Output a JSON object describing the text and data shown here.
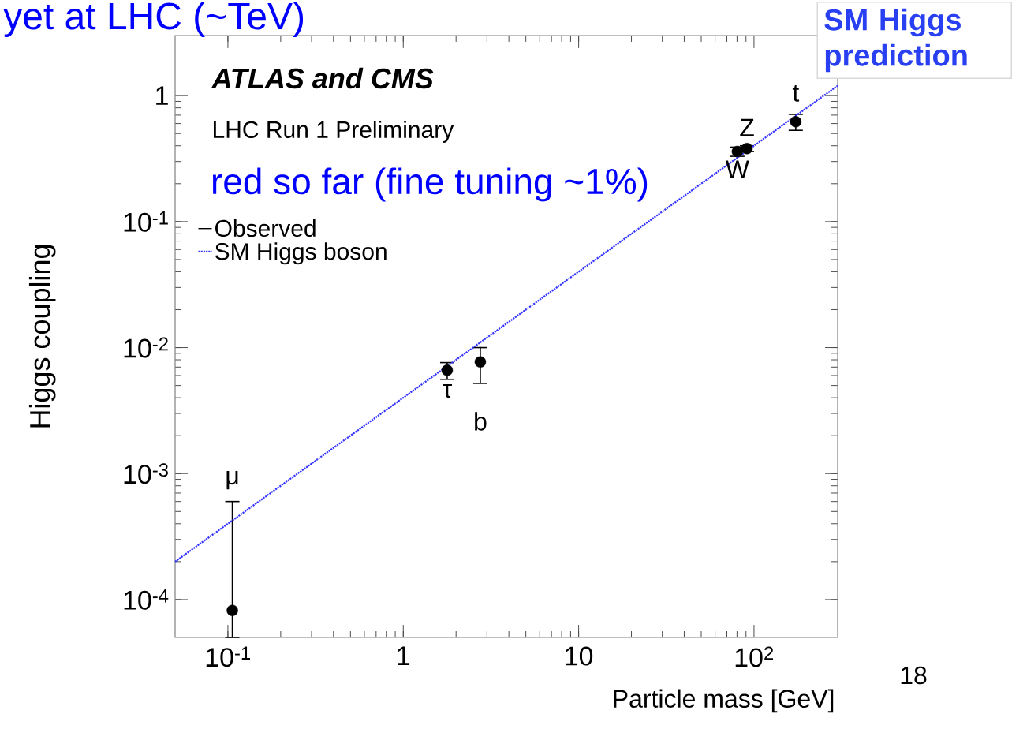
{
  "chart_data": {
    "type": "scatter",
    "xlabel": "Particle mass [GeV]",
    "ylabel": "Higgs coupling",
    "log": "xy",
    "legend": "left",
    "xlim": [
      0.05,
      300
    ],
    "ylim": [
      5e-05,
      3
    ],
    "xticks": [
      {
        "value": 0.1,
        "label": "10$^{-1}$"
      },
      1,
      10,
      {
        "value": 100,
        "label": "10$^{2}$"
      }
    ],
    "yticks": [
      {
        "value": 0.0001,
        "label": "10$^{-4}$"
      },
      {
        "value": 0.001,
        "label": "10$^{-3}$"
      },
      {
        "value": 0.01,
        "label": "10$^{-2}$"
      },
      {
        "value": 0.1,
        "label": "10$^{-1}$"
      },
      1
    ],
    "series": [
      {
        "name": "Observed",
        "marker": "circle",
        "color": "#000000",
        "x": [
          0.106,
          1.78,
          2.75,
          80.4,
          91.2,
          173
        ],
        "values": [
          8.2e-05,
          0.0066,
          0.0077,
          0.36,
          0.38,
          0.62
        ],
        "errors": [
          [
            5e-05,
            0.0006
          ],
          [
            0.0056,
            0.0076
          ],
          [
            0.0052,
            0.01
          ],
          [
            0.33,
            0.39
          ],
          [
            0.36,
            0.4
          ],
          [
            0.53,
            0.71
          ]
        ]
      },
      {
        "name": "SM Higgs boson",
        "type": "line",
        "line_style": "dotted",
        "color": "#3333ff",
        "x": [
          0.05,
          300
        ],
        "values": [
          0.0002,
          1.2
        ]
      }
    ],
    "annotations": [
      "ATLAS and CMS",
      "LHC Run 1 Preliminary",
      "SM Higgs prediction",
      "18",
      "yet at LHC (~TeV)",
      "red so far (fine tuning ~1%)",
      {
        "text": "μ",
        "x": 0.106,
        "y": 0.0006
      },
      {
        "text": "τ",
        "x": 1.78,
        "y": 0.0066
      },
      {
        "text": "b",
        "x": 2.75,
        "y": 0.0077
      },
      {
        "text": "W",
        "x": 80.4,
        "y": 0.36
      },
      {
        "text": "Z",
        "x": 91.2,
        "y": 0.38
      },
      {
        "text": "t",
        "x": 173,
        "y": 0.62
      }
    ]
  }
}
